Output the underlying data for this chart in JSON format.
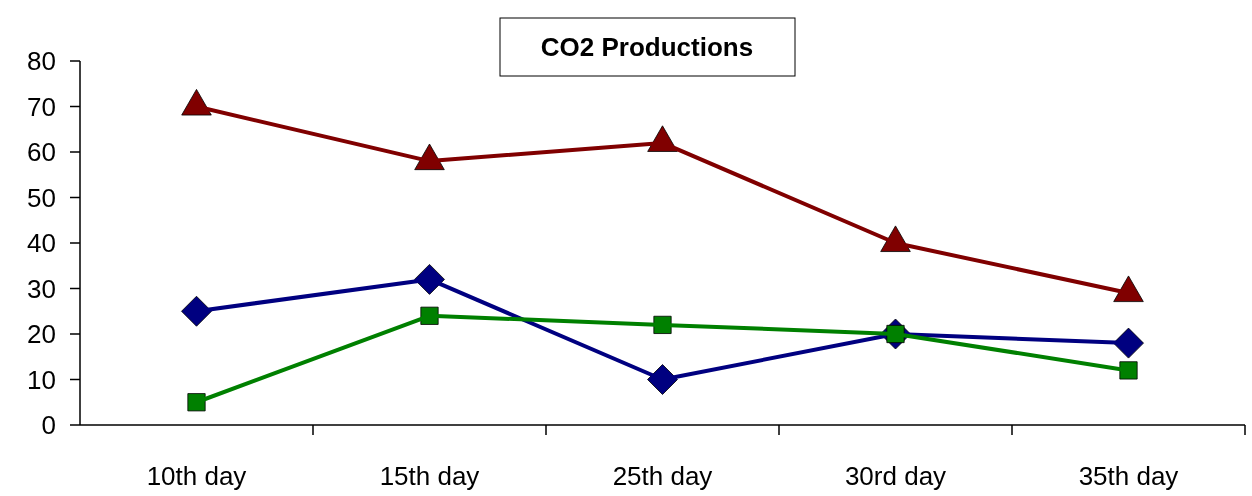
{
  "chart_data": {
    "type": "line",
    "title": "CO2 Productions",
    "categories": [
      "10th day",
      "15th day",
      "25th day",
      "30rd day",
      "35th day"
    ],
    "series": [
      {
        "color": "#800000",
        "marker": "triangle",
        "values": [
          70,
          58,
          62,
          40,
          29
        ]
      },
      {
        "color": "#000080",
        "marker": "diamond",
        "values": [
          25,
          32,
          10,
          20,
          18
        ]
      },
      {
        "color": "#008000",
        "marker": "square",
        "values": [
          5,
          24,
          22,
          20,
          12
        ]
      }
    ],
    "ylim": [
      0,
      80
    ],
    "yticks": [
      0,
      10,
      20,
      30,
      40,
      50,
      60,
      70,
      80
    ],
    "grid": false
  }
}
